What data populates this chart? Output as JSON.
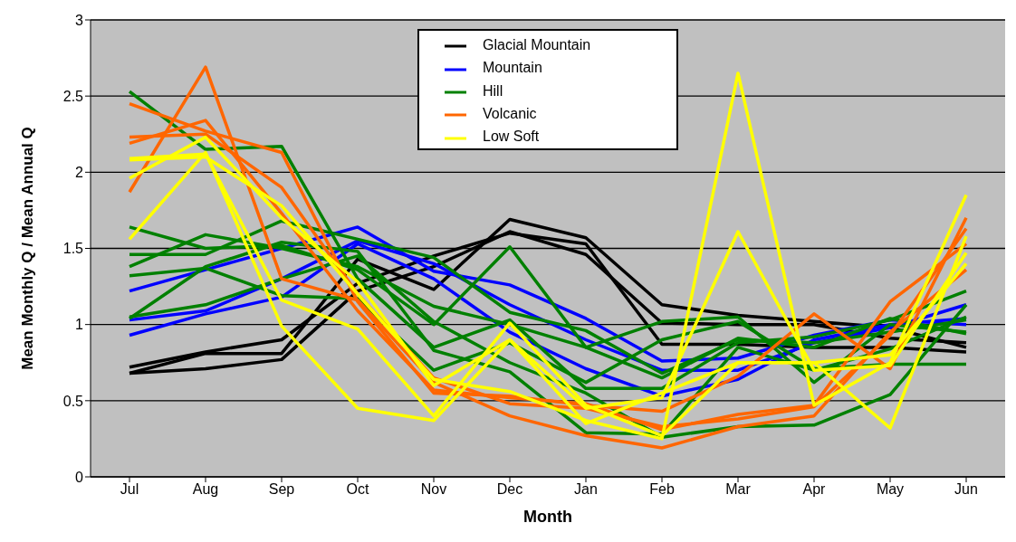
{
  "chart_data": {
    "type": "line",
    "xlabel": "Month",
    "ylabel": "Mean Monthly Q / Mean Annual Q",
    "categories": [
      "Jul",
      "Aug",
      "Sep",
      "Oct",
      "Nov",
      "Dec",
      "Jan",
      "Feb",
      "Mar",
      "Apr",
      "May",
      "Jun"
    ],
    "ylim": [
      0,
      3
    ],
    "yticks": [
      0,
      0.5,
      1,
      1.5,
      2,
      2.5,
      3
    ],
    "grid": "y",
    "legend": "top",
    "marker": "none",
    "line_style": "solid",
    "series": [
      {
        "name": "Glacial Mountain",
        "color": "#000000",
        "values": [
          0.72,
          0.82,
          0.9,
          1.27,
          1.45,
          1.6,
          1.53,
          0.87,
          0.87,
          0.85,
          0.85,
          0.82
        ]
      },
      {
        "color": "#000000",
        "values": [
          0.68,
          0.81,
          0.81,
          1.43,
          1.23,
          1.69,
          1.57,
          1.13,
          1.06,
          1.02,
          0.98,
          0.85
        ]
      },
      {
        "color": "#000000",
        "values": [
          0.68,
          0.71,
          0.77,
          1.22,
          1.38,
          1.61,
          1.46,
          1.01,
          1.0,
          1.0,
          0.91,
          0.88
        ]
      },
      {
        "name": "Mountain",
        "color": "#0000ff",
        "values": [
          1.22,
          1.36,
          1.5,
          1.64,
          1.35,
          1.26,
          1.04,
          0.76,
          0.78,
          0.93,
          1.03,
          1.0
        ]
      },
      {
        "color": "#0000ff",
        "values": [
          1.03,
          1.09,
          1.3,
          1.55,
          1.4,
          1.13,
          0.9,
          0.7,
          0.7,
          0.88,
          0.98,
          1.13
        ]
      },
      {
        "color": "#0000ff",
        "values": [
          0.93,
          1.07,
          1.18,
          1.53,
          1.3,
          0.95,
          0.71,
          0.53,
          0.64,
          0.9,
          1.0,
          1.04
        ]
      },
      {
        "name": "Hill",
        "color": "#008000",
        "values": [
          2.53,
          2.15,
          2.17,
          1.3,
          0.85,
          1.03,
          0.58,
          0.58,
          0.88,
          0.92,
          1.03,
          1.22
        ]
      },
      {
        "color": "#008000",
        "values": [
          1.64,
          1.5,
          1.52,
          1.36,
          1.0,
          1.51,
          0.85,
          1.02,
          1.05,
          0.62,
          1.0,
          0.95
        ]
      },
      {
        "color": "#008000",
        "values": [
          1.46,
          1.46,
          1.68,
          1.56,
          1.44,
          1.08,
          0.96,
          0.68,
          0.9,
          0.88,
          0.95,
          1.03
        ]
      },
      {
        "color": "#008000",
        "values": [
          1.38,
          1.59,
          1.5,
          1.38,
          1.12,
          1.0,
          0.85,
          0.65,
          0.91,
          0.85,
          1.04,
          0.94
        ]
      },
      {
        "color": "#008000",
        "values": [
          1.32,
          1.37,
          1.19,
          1.17,
          0.7,
          0.88,
          0.62,
          0.9,
          1.02,
          0.71,
          0.74,
          0.74
        ]
      },
      {
        "color": "#008000",
        "values": [
          1.05,
          1.13,
          1.3,
          1.45,
          1.02,
          0.75,
          0.55,
          0.26,
          0.33,
          0.34,
          0.54,
          1.13
        ]
      },
      {
        "color": "#008000",
        "values": [
          1.04,
          1.38,
          1.54,
          1.48,
          0.83,
          0.69,
          0.29,
          0.28,
          0.85,
          0.7,
          0.84,
          1.05
        ]
      },
      {
        "name": "Volcanic",
        "color": "#ff6600",
        "values": [
          2.45,
          2.27,
          2.13,
          1.15,
          0.55,
          0.53,
          0.47,
          0.43,
          0.66,
          1.07,
          0.71,
          1.7
        ]
      },
      {
        "color": "#ff6600",
        "values": [
          2.23,
          2.25,
          1.9,
          1.2,
          0.65,
          0.48,
          0.45,
          0.33,
          0.38,
          0.46,
          0.93,
          1.63
        ]
      },
      {
        "color": "#ff6600",
        "values": [
          2.19,
          2.34,
          1.73,
          1.09,
          0.57,
          0.52,
          0.48,
          0.31,
          0.41,
          0.47,
          1.15,
          1.53
        ]
      },
      {
        "color": "#ff6600",
        "values": [
          1.87,
          2.69,
          1.3,
          1.16,
          0.62,
          0.4,
          0.27,
          0.19,
          0.33,
          0.4,
          0.95,
          1.36
        ]
      },
      {
        "name": "Low Soft",
        "color": "#ffff00",
        "values": [
          2.08,
          2.1,
          1.78,
          1.2,
          0.64,
          0.56,
          0.37,
          0.25,
          2.65,
          0.47,
          0.75,
          1.85
        ]
      },
      {
        "color": "#ffff00",
        "values": [
          1.96,
          2.23,
          1.7,
          1.28,
          0.6,
          0.9,
          0.45,
          0.52,
          1.61,
          0.7,
          0.73,
          1.47
        ]
      },
      {
        "color": "#ffff00",
        "values": [
          1.56,
          2.13,
          0.99,
          0.45,
          0.37,
          0.9,
          0.35,
          0.55,
          0.75,
          0.75,
          0.32,
          1.58
        ]
      },
      {
        "color": "#ffff00",
        "values": [
          2.09,
          2.12,
          1.16,
          0.97,
          0.4,
          1.01,
          0.47,
          0.27,
          0.75,
          0.75,
          0.8,
          1.4
        ]
      }
    ]
  }
}
